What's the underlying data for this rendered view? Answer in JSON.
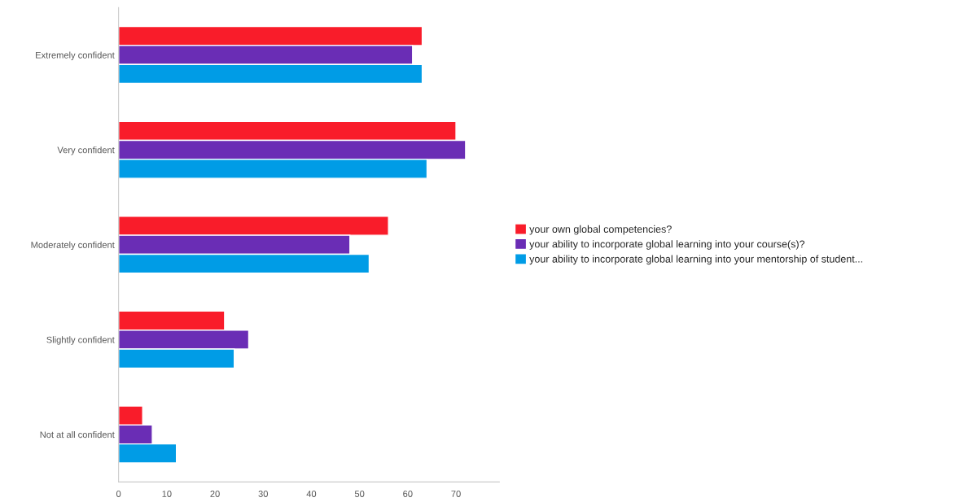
{
  "chart_data": {
    "type": "bar",
    "orientation": "horizontal",
    "categories": [
      "Extremely confident",
      "Very confident",
      "Moderately confident",
      "Slightly confident",
      "Not at all confident"
    ],
    "series": [
      {
        "name": "your own global competencies?",
        "color": "#f91c2a",
        "values": [
          63,
          70,
          56,
          22,
          5
        ]
      },
      {
        "name": "your ability to incorporate global learning into your course(s)?",
        "color": "#6a2db5",
        "values": [
          61,
          72,
          48,
          27,
          7
        ]
      },
      {
        "name": "your ability to incorporate global learning into your mentorship of student...",
        "color": "#009ce6",
        "values": [
          63,
          64,
          52,
          24,
          12
        ]
      }
    ],
    "xlim": [
      0,
      79
    ],
    "xticks": [
      0,
      10,
      20,
      30,
      40,
      50,
      60,
      70
    ],
    "grid": false,
    "legend": "right"
  }
}
